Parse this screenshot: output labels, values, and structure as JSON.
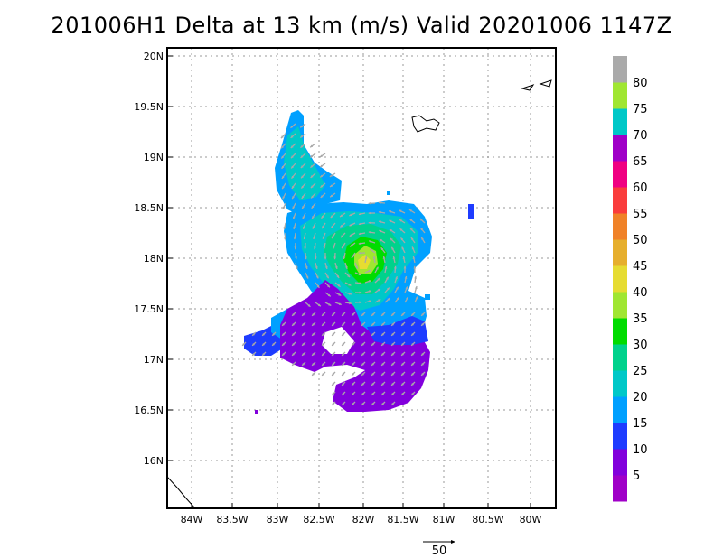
{
  "title": "201006H1 Delta at 13 km (m/s) Valid 20201006 1147Z",
  "colors": {
    "frame": "#000000",
    "grid": "#9a9a9a",
    "coast": "#000000",
    "vector": "#a8a8a8"
  },
  "colorbar": {
    "segments": [
      {
        "color": "#a000c8"
      },
      {
        "color": "#8200dc"
      },
      {
        "color": "#1e3cff"
      },
      {
        "color": "#00a0ff"
      },
      {
        "color": "#00c8c8"
      },
      {
        "color": "#00d28c"
      },
      {
        "color": "#00dc00"
      },
      {
        "color": "#a0e632"
      },
      {
        "color": "#e6dc32"
      },
      {
        "color": "#e6af2d"
      },
      {
        "color": "#f08228"
      },
      {
        "color": "#fa3c3c"
      },
      {
        "color": "#f00082"
      },
      {
        "color": "#a000c8"
      },
      {
        "color": "#00c8c8"
      },
      {
        "color": "#a0e632"
      },
      {
        "color": "#aaaaaa"
      }
    ],
    "labels": [
      "5",
      "10",
      "15",
      "20",
      "25",
      "30",
      "35",
      "40",
      "45",
      "50",
      "55",
      "60",
      "65",
      "70",
      "75",
      "80"
    ]
  },
  "map": {
    "x_ticks": [
      "84W",
      "83.5W",
      "83W",
      "82.5W",
      "82W",
      "81.5W",
      "81W",
      "80.5W",
      "80W"
    ],
    "y_ticks": [
      "20N",
      "19.5N",
      "19N",
      "18.5N",
      "18N",
      "17.5N",
      "17N",
      "16.5N",
      "16N"
    ],
    "gridlines": true
  },
  "reference_vector": {
    "label": "50"
  }
}
